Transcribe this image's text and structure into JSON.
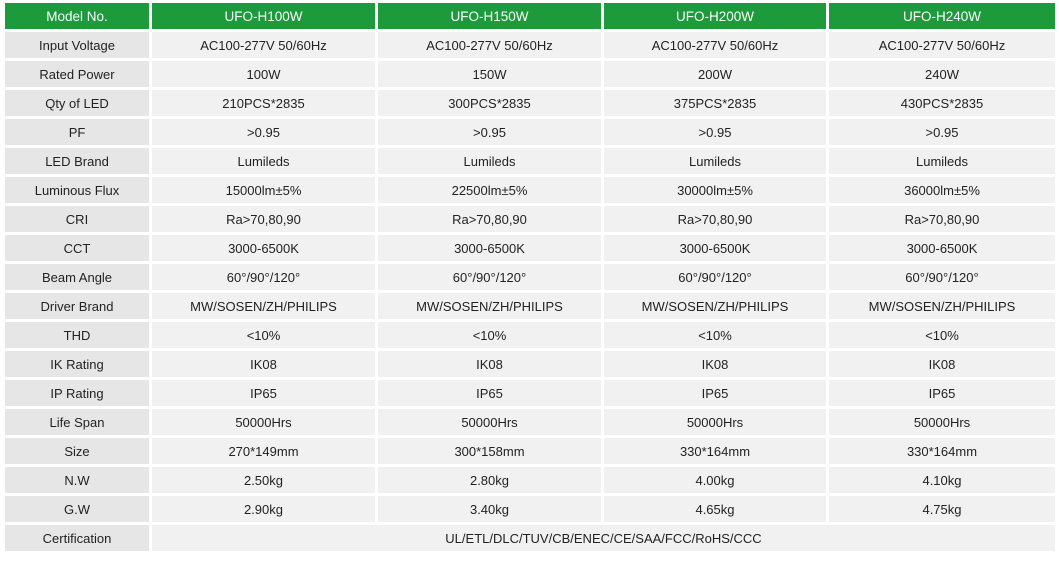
{
  "table": {
    "header": [
      "Model No.",
      "UFO-H100W",
      "UFO-H150W",
      "UFO-H200W",
      "UFO-H240W"
    ],
    "rows": [
      [
        "Input Voltage",
        "AC100-277V 50/60Hz",
        "AC100-277V 50/60Hz",
        "AC100-277V 50/60Hz",
        "AC100-277V 50/60Hz"
      ],
      [
        "Rated Power",
        "100W",
        "150W",
        "200W",
        "240W"
      ],
      [
        "Qty of LED",
        "210PCS*2835",
        "300PCS*2835",
        "375PCS*2835",
        "430PCS*2835"
      ],
      [
        "PF",
        ">0.95",
        ">0.95",
        ">0.95",
        ">0.95"
      ],
      [
        "LED Brand",
        "Lumileds",
        "Lumileds",
        "Lumileds",
        "Lumileds"
      ],
      [
        "Luminous Flux",
        "15000lm±5%",
        "22500lm±5%",
        "30000lm±5%",
        "36000lm±5%"
      ],
      [
        "CRI",
        "Ra>70,80,90",
        "Ra>70,80,90",
        "Ra>70,80,90",
        "Ra>70,80,90"
      ],
      [
        "CCT",
        "3000-6500K",
        "3000-6500K",
        "3000-6500K",
        "3000-6500K"
      ],
      [
        "Beam Angle",
        "60°/90°/120°",
        "60°/90°/120°",
        "60°/90°/120°",
        "60°/90°/120°"
      ],
      [
        "Driver Brand",
        "MW/SOSEN/ZH/PHILIPS",
        "MW/SOSEN/ZH/PHILIPS",
        "MW/SOSEN/ZH/PHILIPS",
        "MW/SOSEN/ZH/PHILIPS"
      ],
      [
        "THD",
        "<10%",
        "<10%",
        "<10%",
        "<10%"
      ],
      [
        "IK Rating",
        "IK08",
        "IK08",
        "IK08",
        "IK08"
      ],
      [
        "IP Rating",
        "IP65",
        "IP65",
        "IP65",
        "IP65"
      ],
      [
        "Life Span",
        "50000Hrs",
        "50000Hrs",
        "50000Hrs",
        "50000Hrs"
      ],
      [
        "Size",
        "270*149mm",
        "300*158mm",
        "330*164mm",
        "330*164mm"
      ],
      [
        "N.W",
        "2.50kg",
        "2.80kg",
        "4.00kg",
        "4.10kg"
      ],
      [
        "G.W",
        "2.90kg",
        "3.40kg",
        "4.65kg",
        "4.75kg"
      ],
      [
        "Certification",
        "UL/ETL/DLC/TUV/CB/ENEC/CE/SAA/FCC/RoHS/CCC"
      ]
    ]
  }
}
